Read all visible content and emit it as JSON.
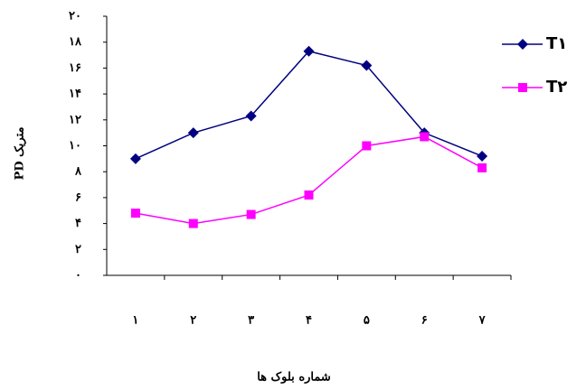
{
  "chart_data": {
    "type": "line",
    "y_label": "PD متریک",
    "x_label": "شماره بلوک ها",
    "categories": [
      "۱",
      "۲",
      "۳",
      "۴",
      "۵",
      "۶",
      "۷"
    ],
    "series": [
      {
        "name": "T۱",
        "color": "#000080",
        "marker": "diamond",
        "values": [
          9.0,
          11.0,
          12.3,
          17.3,
          16.2,
          11.0,
          9.2
        ]
      },
      {
        "name": "T۲",
        "color": "#ff00ff",
        "marker": "square",
        "values": [
          4.8,
          4.0,
          4.7,
          6.2,
          10.0,
          10.7,
          8.3
        ]
      }
    ],
    "ylim": [
      0,
      20
    ],
    "yticks": [
      {
        "value": 0,
        "label": "۰"
      },
      {
        "value": 2,
        "label": "۲"
      },
      {
        "value": 4,
        "label": "۴"
      },
      {
        "value": 6,
        "label": "۶"
      },
      {
        "value": 8,
        "label": "۸"
      },
      {
        "value": 10,
        "label": "۱۰"
      },
      {
        "value": 12,
        "label": "۱۲"
      },
      {
        "value": 14,
        "label": "۱۴"
      },
      {
        "value": 16,
        "label": "۱۶"
      },
      {
        "value": 18,
        "label": "۱۸"
      },
      {
        "value": 20,
        "label": "۲۰"
      }
    ],
    "legend": "right",
    "grid": false
  }
}
